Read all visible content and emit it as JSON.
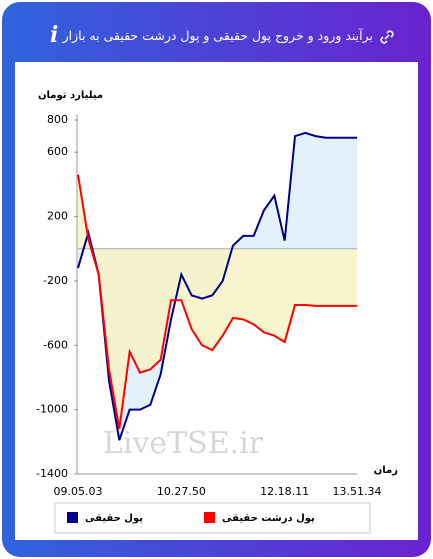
{
  "chart_data": {
    "type": "line",
    "title": "برآیند ورود و خروج پول حقیقی و پول درشت حقیقی به بازار",
    "y_label": "میلیارد تومان",
    "x_label": "زمان",
    "watermark": "LiveTSE.ir",
    "categories": [
      "09.05.03",
      null,
      null,
      null,
      null,
      null,
      null,
      null,
      null,
      null,
      "10.27.50",
      null,
      null,
      null,
      null,
      null,
      null,
      null,
      null,
      null,
      "12.18.11",
      null,
      null,
      null,
      null,
      null,
      null,
      "13.51.34"
    ],
    "series": [
      {
        "name": "پول حقیقی",
        "color": "#00008b",
        "values": [
          -120,
          100,
          -160,
          -820,
          -1190,
          -1000,
          -1000,
          -970,
          -780,
          -440,
          -160,
          -290,
          -310,
          -290,
          -200,
          20,
          80,
          80,
          240,
          330,
          50,
          700,
          720,
          700,
          690,
          690,
          690,
          690
        ]
      },
      {
        "name": "پول درشت حقیقی",
        "color": "#ff0000",
        "values": [
          460,
          60,
          -160,
          -750,
          -1120,
          -640,
          -770,
          -750,
          -690,
          -320,
          -320,
          -500,
          -600,
          -630,
          -540,
          -430,
          -440,
          -470,
          -520,
          -540,
          -580,
          -350,
          -350,
          -355,
          -355,
          -355,
          -355,
          -355
        ]
      }
    ],
    "ylim": [
      -1400,
      800
    ],
    "yticks": [
      800,
      600,
      200,
      -200,
      -600,
      -1000,
      -1400
    ]
  }
}
